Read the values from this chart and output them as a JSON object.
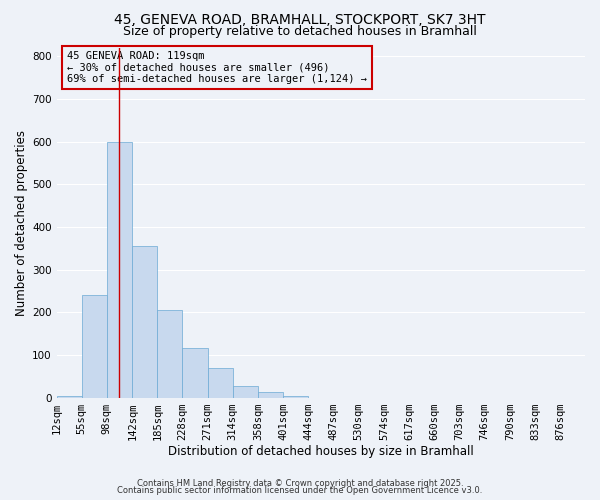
{
  "title_line1": "45, GENEVA ROAD, BRAMHALL, STOCKPORT, SK7 3HT",
  "title_line2": "Size of property relative to detached houses in Bramhall",
  "xlabel": "Distribution of detached houses by size in Bramhall",
  "ylabel": "Number of detached properties",
  "bin_labels": [
    "12sqm",
    "55sqm",
    "98sqm",
    "142sqm",
    "185sqm",
    "228sqm",
    "271sqm",
    "314sqm",
    "358sqm",
    "401sqm",
    "444sqm",
    "487sqm",
    "530sqm",
    "574sqm",
    "617sqm",
    "660sqm",
    "703sqm",
    "746sqm",
    "790sqm",
    "833sqm",
    "876sqm"
  ],
  "bin_edges": [
    12,
    55,
    98,
    142,
    185,
    228,
    271,
    314,
    358,
    401,
    444,
    487,
    530,
    574,
    617,
    660,
    703,
    746,
    790,
    833,
    876
  ],
  "bar_heights": [
    5,
    240,
    600,
    355,
    205,
    118,
    70,
    28,
    15,
    5,
    0,
    0,
    0,
    0,
    0,
    0,
    0,
    0,
    0,
    0
  ],
  "bar_color": "#c8d9ee",
  "bar_edge_color": "#6baad4",
  "vline_x": 119,
  "vline_color": "#cc0000",
  "ylim": [
    0,
    820
  ],
  "yticks": [
    0,
    100,
    200,
    300,
    400,
    500,
    600,
    700,
    800
  ],
  "annotation_title": "45 GENEVA ROAD: 119sqm",
  "annotation_line2": "← 30% of detached houses are smaller (496)",
  "annotation_line3": "69% of semi-detached houses are larger (1,124) →",
  "annotation_box_color": "#cc0000",
  "footer_line1": "Contains HM Land Registry data © Crown copyright and database right 2025.",
  "footer_line2": "Contains public sector information licensed under the Open Government Licence v3.0.",
  "background_color": "#eef2f8",
  "grid_color": "#ffffff",
  "title_fontsize": 10,
  "subtitle_fontsize": 9,
  "axis_label_fontsize": 8.5,
  "tick_fontsize": 7.5,
  "annotation_fontsize": 7.5,
  "footer_fontsize": 6
}
